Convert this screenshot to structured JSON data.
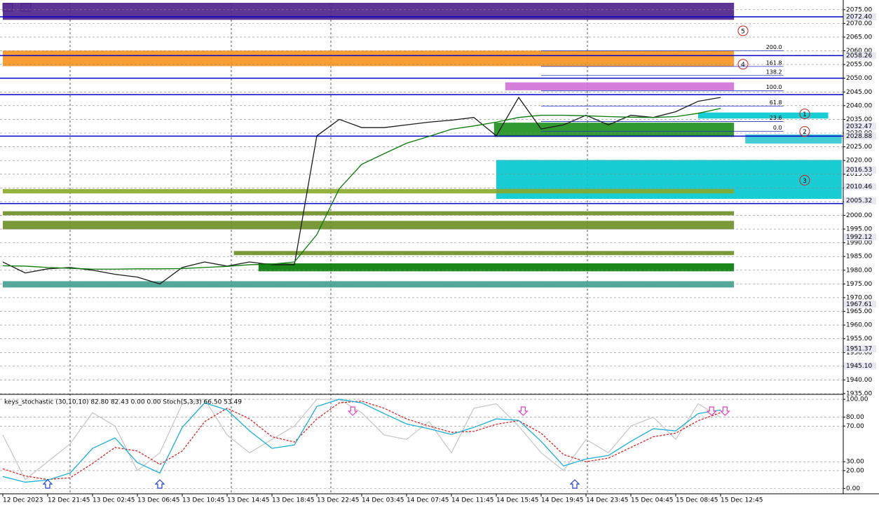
{
  "chart_data": [
    {
      "type": "line",
      "categories": [
        "12 Dec 2023",
        null,
        "12 Dec 21:45",
        null,
        "13 Dec 02:45",
        null,
        "13 Dec 06:45",
        null,
        "13 Dec 10:45",
        null,
        "13 Dec 14:45",
        null,
        "13 Dec 18:45",
        null,
        "13 Dec 22:45",
        null,
        "14 Dec 03:45",
        null,
        "14 Dec 07:45",
        null,
        "14 Dec 11:45",
        null,
        "14 Dec 15:45",
        null,
        "14 Dec 19:45",
        null,
        "14 Dec 23:45",
        null,
        "15 Dec 04:45",
        null,
        "15 Dec 08:45",
        null,
        "15 Dec 12:45",
        null
      ],
      "series": [
        {
          "color": "#1a1a1a",
          "values": [
            1983,
            1979,
            1980.5,
            1981,
            1980,
            1978.5,
            1977.5,
            1975,
            1981,
            1983,
            1981.5,
            1983,
            1982,
            1982,
            2029,
            2035,
            2032,
            2032,
            2033,
            2034,
            2034.7,
            2035.7,
            2029,
            2043,
            2031.5,
            2033,
            2036.5,
            2033,
            2036.5,
            2035.7,
            2037.8,
            2041.6,
            2043,
            null
          ]
        },
        {
          "color": "#0a7a0a",
          "values": [
            1981.6,
            1981.5,
            1981,
            1980.7,
            1980.4,
            1980.4,
            1980.5,
            1980.5,
            1980.6,
            1981,
            1981.4,
            1982,
            1982.2,
            1983,
            1993,
            2009.7,
            2018.6,
            2022.5,
            2026.3,
            2028.8,
            2031.4,
            2032.6,
            2034,
            2035.7,
            2036.5,
            2036.5,
            2036.3,
            2036,
            2035.8,
            2035.7,
            2036,
            2037.2,
            2039,
            null
          ]
        }
      ],
      "ylim": [
        1935,
        2077.5
      ],
      "yticks": [
        {
          "value": 2075,
          "label": "2075.00"
        },
        {
          "value": 2070,
          "label": "2070.00"
        },
        {
          "value": 2065,
          "label": "2065.00"
        },
        {
          "value": 2060,
          "label": "2060.00"
        },
        {
          "value": 2055,
          "label": "2055.00"
        },
        {
          "value": 2050,
          "label": "2050.00"
        },
        {
          "value": 2045,
          "label": "2045.00"
        },
        {
          "value": 2040,
          "label": "2040.00"
        },
        {
          "value": 2035,
          "label": "2035.00"
        },
        {
          "value": 2030,
          "label": "2030.00"
        },
        {
          "value": 2025,
          "label": "2025.00"
        },
        {
          "value": 2020,
          "label": "2020.00"
        },
        {
          "value": 2015,
          "label": "2015.00"
        },
        {
          "value": 2010,
          "label": "2010.00"
        },
        {
          "value": 2005,
          "label": "2005.00"
        },
        {
          "value": 2000,
          "label": "2000.00"
        },
        {
          "value": 1995,
          "label": "1995.00"
        },
        {
          "value": 1990,
          "label": "1990.00"
        },
        {
          "value": 1985,
          "label": "1985.00"
        },
        {
          "value": 1980,
          "label": "1980.00"
        },
        {
          "value": 1975,
          "label": "1975.00"
        },
        {
          "value": 1970,
          "label": "1970.00"
        },
        {
          "value": 1965,
          "label": "1965.00"
        },
        {
          "value": 1960,
          "label": "1960.00"
        },
        {
          "value": 1955,
          "label": "1955.00"
        },
        {
          "value": 1950,
          "label": "1950.00"
        },
        {
          "value": 1945,
          "label": "1945.00"
        },
        {
          "value": 1940,
          "label": "1940.00"
        },
        {
          "value": 1935,
          "label": "1935.00"
        }
      ],
      "grid": true,
      "price_labels": [
        {
          "value": 2072.4,
          "label": "2072.40"
        },
        {
          "value": 2058.26,
          "label": "2058.26"
        },
        {
          "value": 2032.47,
          "label": "2032.47"
        },
        {
          "value": 2028.88,
          "label": "2028.88"
        },
        {
          "value": 2016.53,
          "label": "2016.53"
        },
        {
          "value": 2010.46,
          "label": "2010.46"
        },
        {
          "value": 2005.32,
          "label": "2005.32"
        },
        {
          "value": 1992.12,
          "label": "1992.12"
        },
        {
          "value": 1967.61,
          "label": "1967.61"
        },
        {
          "value": 1951.37,
          "label": "1951.37"
        },
        {
          "value": 1945.1,
          "label": "1945.10"
        }
      ],
      "hlines": [
        2072.4,
        2058.26,
        2050,
        2044,
        2028.88,
        2004.3
      ],
      "hline_color": "#0000c8",
      "zones": [
        {
          "from": 2077.5,
          "to": 2071.3,
          "start": 0,
          "end": 32.6,
          "color": "#4b1f8a"
        },
        {
          "from": 2060.1,
          "to": 2054.4,
          "start": 0,
          "end": 32.6,
          "color": "#f7941d"
        },
        {
          "from": 2048.5,
          "to": 2045.6,
          "start": 22.4,
          "end": 32.6,
          "color": "#d070d8"
        },
        {
          "from": 2037.5,
          "to": 2035.3,
          "start": 31,
          "end": 36.8,
          "color": "#00c8d0"
        },
        {
          "from": 2033.8,
          "to": 2028.6,
          "start": 21.9,
          "end": 32.6,
          "color": "#1a8f1a"
        },
        {
          "from": 2029.5,
          "to": 2026.2,
          "start": 33.1,
          "end": 37.4,
          "color": "#2ec8d0"
        },
        {
          "from": 2020.2,
          "to": 2006,
          "start": 22,
          "end": 37.4,
          "color": "#00c8d0"
        },
        {
          "from": 2009.6,
          "to": 2008,
          "start": 0,
          "end": 32.6,
          "color": "#8aa82a"
        },
        {
          "from": 2001.5,
          "to": 2000,
          "start": 0,
          "end": 32.6,
          "color": "#6b8e23"
        },
        {
          "from": 1998,
          "to": 1994.9,
          "start": 0,
          "end": 32.6,
          "color": "#6b8e23"
        },
        {
          "from": 1987,
          "to": 1985.5,
          "start": 10.3,
          "end": 32.6,
          "color": "#6b8e23"
        },
        {
          "from": 1982.5,
          "to": 1979.6,
          "start": 11.4,
          "end": 32.6,
          "color": "#007a00"
        },
        {
          "from": 1976,
          "to": 1973.7,
          "start": 0,
          "end": 32.6,
          "color": "#3fa08c"
        }
      ],
      "fib_start": 24,
      "fib_end": 34.8,
      "fib_labels": [
        {
          "value": 2060,
          "label": "200.0"
        },
        {
          "value": 2054.3,
          "label": "161.8"
        },
        {
          "value": 2051,
          "label": "138.2"
        },
        {
          "value": 2045.4,
          "label": "100.0"
        },
        {
          "value": 2039.8,
          "label": "61.8"
        },
        {
          "value": 2034.2,
          "label": "23.6"
        },
        {
          "value": 2030.6,
          "label": "0.0"
        }
      ],
      "annotations": [
        {
          "label": "5",
          "value": 2067.3,
          "index": 33
        },
        {
          "label": "4",
          "value": 2055.1,
          "index": 33
        },
        {
          "label": "1",
          "value": 2037,
          "index": 35.75
        },
        {
          "label": "2",
          "value": 2030.6,
          "index": 35.75
        },
        {
          "label": "3",
          "value": 2012.8,
          "index": 35.75
        }
      ]
    },
    {
      "type": "line",
      "title": "keys_stochastic (30,10,10) 82.80 82.43 0.00 0.00 Stoch(5,3,3) 66.50 53.49",
      "series": [
        {
          "color": "#c8c8c8",
          "values": [
            60,
            10,
            30,
            50,
            85,
            70,
            20,
            40,
            95,
            100,
            60,
            40,
            55,
            70,
            100,
            100,
            85,
            60,
            55,
            75,
            40,
            90,
            95,
            70,
            40,
            20,
            55,
            40,
            70,
            80,
            55,
            95,
            80,
            null
          ]
        },
        {
          "color": "#e02020",
          "dashed": true,
          "values": [
            22,
            14,
            10,
            12,
            28,
            46,
            42,
            27,
            42,
            75,
            90,
            78,
            58,
            52,
            78,
            96,
            98,
            90,
            78,
            70,
            63,
            64,
            72,
            76,
            62,
            38,
            30,
            34,
            46,
            58,
            62,
            76,
            85,
            null
          ]
        },
        {
          "color": "#1ab0d8",
          "values": [
            13.4,
            7,
            9.4,
            17.3,
            44.9,
            56.7,
            29,
            17.3,
            68.5,
            96,
            88,
            64.6,
            45,
            48.8,
            92,
            100,
            96,
            84,
            72.4,
            67,
            60.6,
            68.5,
            78,
            76.4,
            52.8,
            25.2,
            33,
            37,
            52.8,
            67,
            64.6,
            84,
            88,
            null
          ]
        }
      ],
      "ylim": [
        -6,
        104
      ],
      "yticks": [
        {
          "value": 100,
          "label": "100.00"
        },
        {
          "value": 80,
          "label": "80.00"
        },
        {
          "value": 70,
          "label": "70.00"
        },
        {
          "value": 30,
          "label": "30.00"
        },
        {
          "value": 20,
          "label": "20.00"
        },
        {
          "value": 0,
          "label": "0.00"
        }
      ],
      "up_arrows": [
        2,
        7,
        25.5
      ],
      "down_arrows": [
        15.6,
        23.2,
        31.6,
        32.2
      ]
    }
  ]
}
